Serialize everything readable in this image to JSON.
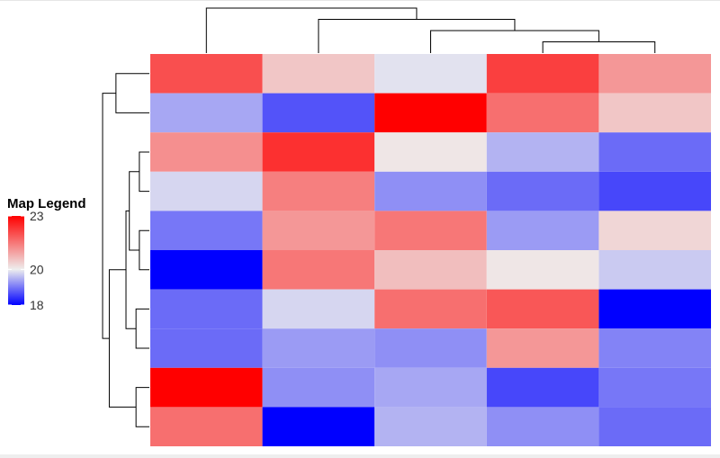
{
  "chart_data": {
    "type": "heatmap",
    "title": "",
    "xlabel": "",
    "ylabel": "",
    "rows": 10,
    "cols": 5,
    "values": [
      [
        22.0,
        20.5,
        19.9,
        22.2,
        21.1
      ],
      [
        19.4,
        18.7,
        23.0,
        21.6,
        20.5
      ],
      [
        21.2,
        22.4,
        20.1,
        19.5,
        18.9
      ],
      [
        19.8,
        21.4,
        19.2,
        18.9,
        18.6
      ],
      [
        19.0,
        21.1,
        21.5,
        19.3,
        20.3
      ],
      [
        17.8,
        21.5,
        20.6,
        20.1,
        19.7
      ],
      [
        18.9,
        19.8,
        21.6,
        21.9,
        18.0
      ],
      [
        18.9,
        19.3,
        19.2,
        21.1,
        19.1
      ],
      [
        23.0,
        19.2,
        19.4,
        18.6,
        19.0
      ],
      [
        21.6,
        17.8,
        19.5,
        19.2,
        18.9
      ]
    ],
    "color_scale": {
      "min": 18,
      "mid": 20,
      "max": 23,
      "low": "#0000ff",
      "mid_color": "#eeeeee",
      "high": "#ff0000"
    },
    "legend": {
      "title": "Map Legend",
      "ticks": [
        "23",
        "20",
        "18"
      ],
      "tick_values": [
        23,
        20,
        18
      ],
      "placement": "left"
    },
    "column_dendrogram": {
      "leaf_order": [
        0,
        1,
        2,
        3,
        4
      ],
      "merges": [
        {
          "a": "c3",
          "b": "c4",
          "height": 1
        },
        {
          "a": "c2",
          "b": "m0",
          "height": 2
        },
        {
          "a": "c1",
          "b": "m1",
          "height": 3
        },
        {
          "a": "c0",
          "b": "m2",
          "height": 4
        }
      ]
    },
    "row_dendrogram": {
      "leaf_order": [
        0,
        1,
        2,
        3,
        4,
        5,
        6,
        7,
        8,
        9
      ],
      "merges": [
        {
          "a": "r0",
          "b": "r1",
          "height": 5
        },
        {
          "a": "r2",
          "b": "r3",
          "height": 1.5
        },
        {
          "a": "r4",
          "b": "r5",
          "height": 1.5
        },
        {
          "a": "r6",
          "b": "r7",
          "height": 2
        },
        {
          "a": "m1",
          "b": "m2",
          "height": 3
        },
        {
          "a": "m4",
          "b": "m3",
          "height": 3.5
        },
        {
          "a": "r8",
          "b": "r9",
          "height": 2
        },
        {
          "a": "m5",
          "b": "m6",
          "height": 6
        },
        {
          "a": "m0",
          "b": "m7",
          "height": 7
        }
      ]
    }
  }
}
